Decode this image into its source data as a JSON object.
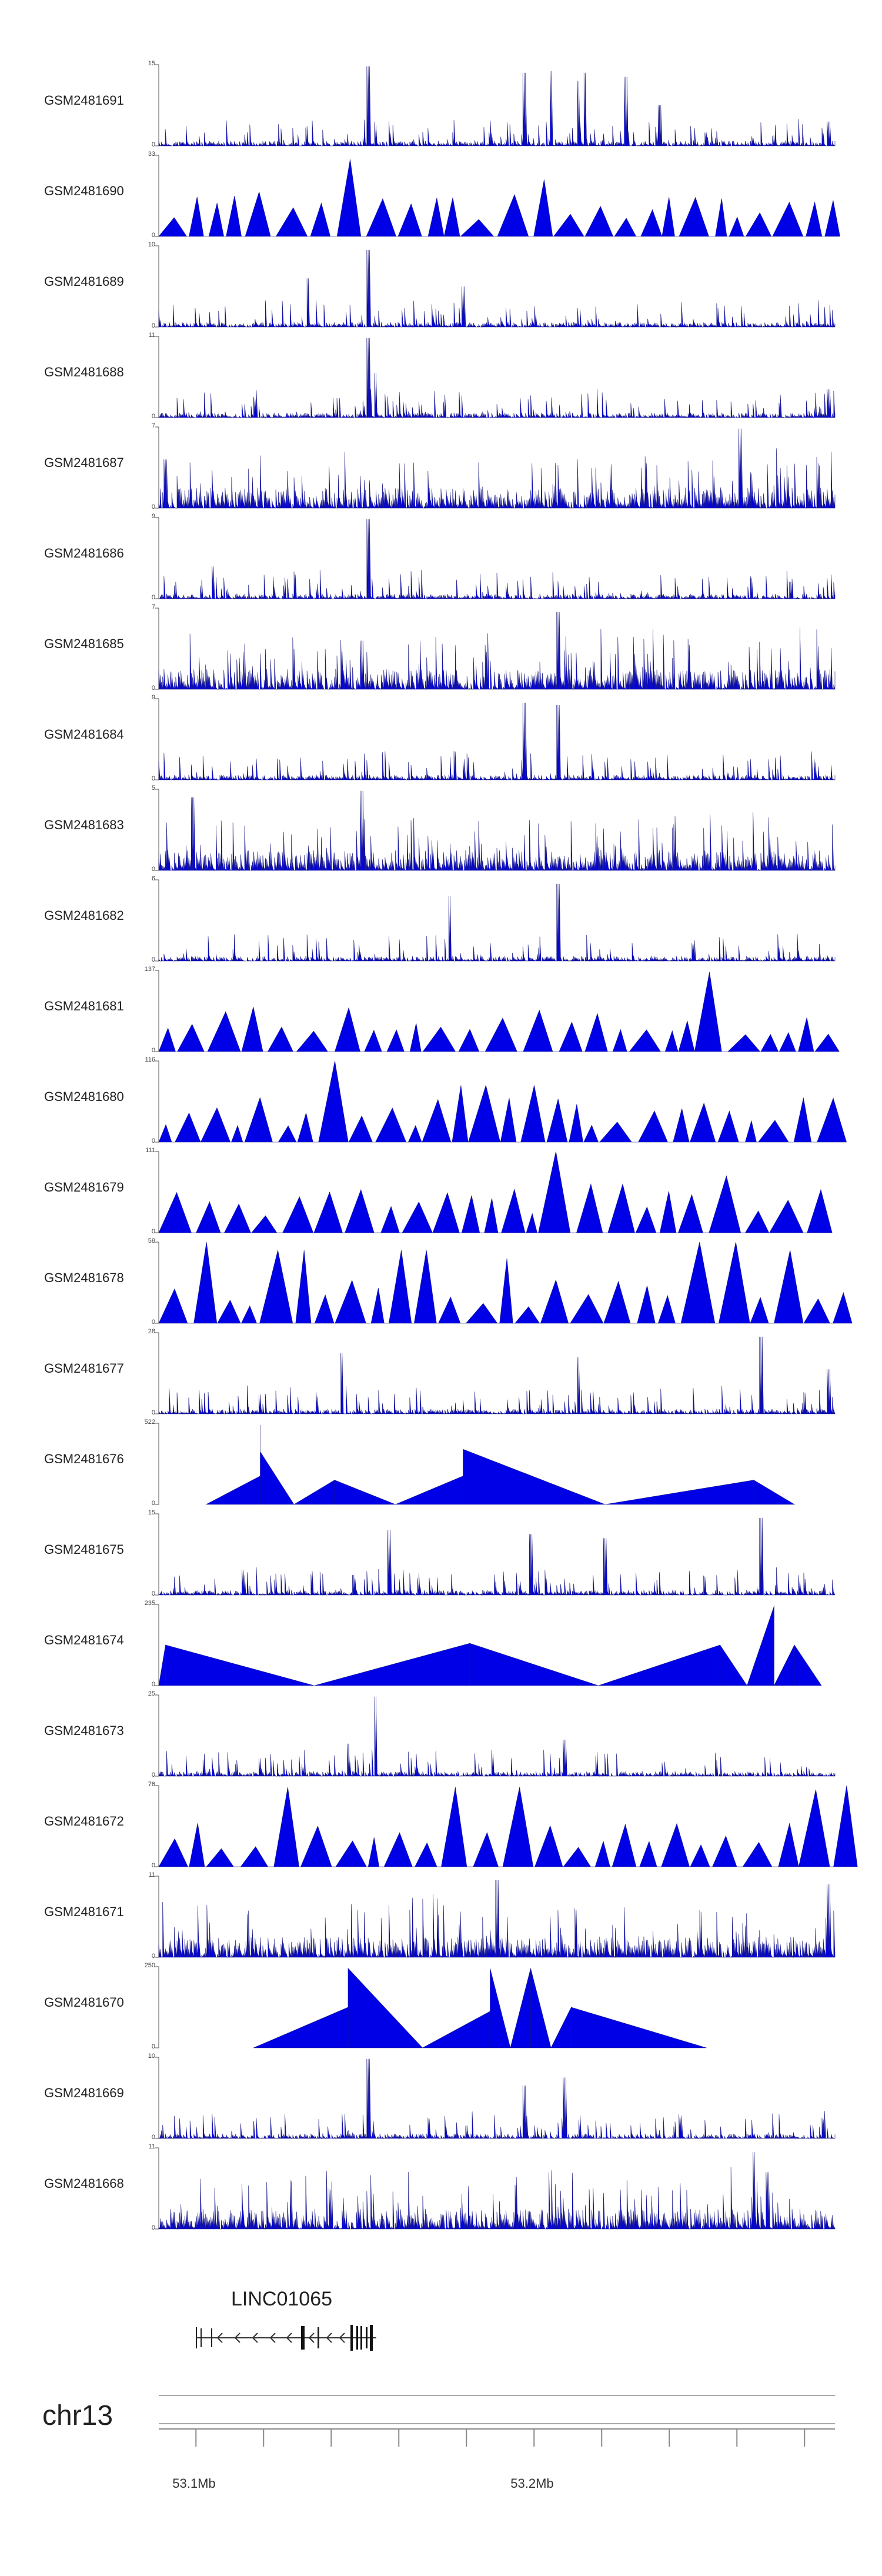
{
  "tracks": [
    {
      "id": "GSM2481691",
      "max": "15",
      "zero": "0",
      "style": "spiky",
      "seed": 11,
      "peaks": [
        [
          0.31,
          0.98
        ],
        [
          0.54,
          0.9
        ],
        [
          0.58,
          0.92
        ],
        [
          0.62,
          0.8
        ],
        [
          0.63,
          0.9
        ],
        [
          0.69,
          0.85
        ],
        [
          0.74,
          0.5
        ],
        [
          0.99,
          0.3
        ]
      ]
    },
    {
      "id": "GSM2481690",
      "max": "33",
      "zero": "0",
      "style": "tri",
      "seed": 12,
      "peaks": [
        [
          0.28,
          0.95
        ],
        [
          0.58,
          0.7
        ],
        [
          0.99,
          0.4
        ]
      ]
    },
    {
      "id": "GSM2481689",
      "max": "10",
      "zero": "0",
      "style": "spiky",
      "seed": 13,
      "peaks": [
        [
          0.31,
          0.95
        ],
        [
          0.22,
          0.6
        ],
        [
          0.45,
          0.5
        ]
      ]
    },
    {
      "id": "GSM2481688",
      "max": "11",
      "zero": "0",
      "style": "spiky",
      "seed": 14,
      "peaks": [
        [
          0.31,
          0.98
        ],
        [
          0.32,
          0.55
        ],
        [
          0.99,
          0.35
        ]
      ]
    },
    {
      "id": "GSM2481687",
      "max": "7",
      "zero": "0",
      "style": "dense",
      "seed": 15,
      "peaks": [
        [
          0.86,
          0.98
        ],
        [
          0.01,
          0.6
        ]
      ]
    },
    {
      "id": "GSM2481686",
      "max": "9",
      "zero": "0",
      "style": "spiky",
      "seed": 16,
      "peaks": [
        [
          0.31,
          0.98
        ],
        [
          0.08,
          0.4
        ]
      ]
    },
    {
      "id": "GSM2481685",
      "max": "7",
      "zero": "0",
      "style": "dense",
      "seed": 17,
      "peaks": [
        [
          0.59,
          0.95
        ],
        [
          0.3,
          0.6
        ]
      ]
    },
    {
      "id": "GSM2481684",
      "max": "9",
      "zero": "0",
      "style": "spiky",
      "seed": 18,
      "peaks": [
        [
          0.54,
          0.95
        ],
        [
          0.59,
          0.92
        ],
        [
          0.54,
          0.6
        ]
      ]
    },
    {
      "id": "GSM2481683",
      "max": "5",
      "zero": "0",
      "style": "dense",
      "seed": 19,
      "peaks": [
        [
          0.3,
          0.98
        ],
        [
          0.05,
          0.9
        ]
      ]
    },
    {
      "id": "GSM2481682",
      "max": "6",
      "zero": "0",
      "style": "spiky",
      "seed": 20,
      "peaks": [
        [
          0.59,
          0.95
        ],
        [
          0.43,
          0.8
        ]
      ]
    },
    {
      "id": "GSM2481681",
      "max": "137",
      "zero": "0",
      "style": "tri",
      "seed": 21,
      "peaks": [
        [
          0.81,
          0.98
        ]
      ]
    },
    {
      "id": "GSM2481680",
      "max": "116",
      "zero": "0",
      "style": "tri",
      "seed": 22,
      "peaks": [
        [
          0.25,
          1.0
        ],
        [
          0.47,
          0.7
        ],
        [
          0.55,
          0.7
        ]
      ]
    },
    {
      "id": "GSM2481679",
      "max": "111",
      "zero": "0",
      "style": "tri",
      "seed": 23,
      "peaks": [
        [
          0.59,
          1.0
        ],
        [
          0.66,
          0.6
        ],
        [
          0.84,
          0.7
        ]
      ]
    },
    {
      "id": "GSM2481678",
      "max": "58",
      "zero": "0",
      "style": "tri",
      "seed": 24,
      "peaks": [
        [
          0.06,
          1.0
        ],
        [
          0.82,
          1.0
        ],
        [
          0.86,
          1.0
        ],
        [
          0.19,
          0.9
        ],
        [
          0.38,
          0.9
        ],
        [
          0.51,
          0.8
        ],
        [
          0.92,
          0.9
        ]
      ]
    },
    {
      "id": "GSM2481677",
      "max": "28",
      "zero": "0",
      "style": "spiky",
      "seed": 25,
      "peaks": [
        [
          0.89,
          0.95
        ],
        [
          0.27,
          0.75
        ],
        [
          0.62,
          0.7
        ],
        [
          0.99,
          0.55
        ]
      ]
    },
    {
      "id": "GSM2481676",
      "max": "522",
      "zero": "0",
      "style": "blocks",
      "seed": 26,
      "blocks": [
        [
          0.07,
          0.15,
          0.0,
          0.35
        ],
        [
          0.15,
          0.15,
          0.35,
          0.98
        ],
        [
          0.15,
          0.2,
          0.65,
          0.0
        ],
        [
          0.2,
          0.26,
          0.0,
          0.3
        ],
        [
          0.26,
          0.35,
          0.3,
          0.0
        ],
        [
          0.35,
          0.45,
          0.0,
          0.35
        ],
        [
          0.45,
          0.45,
          0.35,
          0.68
        ],
        [
          0.45,
          0.66,
          0.68,
          0.0
        ],
        [
          0.66,
          0.88,
          0.0,
          0.3
        ],
        [
          0.88,
          0.94,
          0.3,
          0.0
        ]
      ]
    },
    {
      "id": "GSM2481675",
      "max": "15",
      "zero": "0",
      "style": "spiky",
      "seed": 27,
      "peaks": [
        [
          0.89,
          0.95
        ],
        [
          0.34,
          0.8
        ],
        [
          0.55,
          0.75
        ],
        [
          0.66,
          0.7
        ]
      ]
    },
    {
      "id": "GSM2481674",
      "max": "235",
      "zero": "0",
      "style": "blocks",
      "seed": 28,
      "blocks": [
        [
          0.0,
          0.01,
          0.0,
          0.5
        ],
        [
          0.01,
          0.23,
          0.5,
          0.0
        ],
        [
          0.23,
          0.46,
          0.0,
          0.52
        ],
        [
          0.46,
          0.65,
          0.52,
          0.0
        ],
        [
          0.65,
          0.83,
          0.0,
          0.5
        ],
        [
          0.83,
          0.87,
          0.5,
          0.0
        ],
        [
          0.87,
          0.91,
          0.0,
          0.98
        ],
        [
          0.91,
          0.94,
          0.0,
          0.5
        ],
        [
          0.94,
          0.98,
          0.5,
          0.0
        ]
      ]
    },
    {
      "id": "GSM2481673",
      "max": "25",
      "zero": "0",
      "style": "spiky",
      "seed": 29,
      "peaks": [
        [
          0.32,
          0.98
        ],
        [
          0.28,
          0.4
        ],
        [
          0.6,
          0.45
        ]
      ]
    },
    {
      "id": "GSM2481672",
      "max": "76",
      "zero": "0",
      "style": "tri",
      "seed": 30,
      "peaks": [
        [
          0.19,
          0.98
        ],
        [
          0.44,
          0.98
        ],
        [
          0.55,
          0.98
        ],
        [
          0.97,
          0.95
        ],
        [
          1.0,
          1.0
        ]
      ]
    },
    {
      "id": "GSM2481671",
      "max": "11",
      "zero": "0",
      "style": "dense",
      "seed": 31,
      "peaks": [
        [
          0.5,
          0.95
        ],
        [
          0.99,
          0.9
        ]
      ]
    },
    {
      "id": "GSM2481670",
      "max": "250",
      "zero": "0",
      "style": "blocks",
      "seed": 32,
      "blocks": [
        [
          0.14,
          0.28,
          0.0,
          0.5
        ],
        [
          0.28,
          0.28,
          0.5,
          0.98
        ],
        [
          0.28,
          0.39,
          0.98,
          0.0
        ],
        [
          0.39,
          0.49,
          0.0,
          0.45
        ],
        [
          0.49,
          0.49,
          0.45,
          0.98
        ],
        [
          0.49,
          0.52,
          0.98,
          0.0
        ],
        [
          0.52,
          0.55,
          0.0,
          0.98
        ],
        [
          0.55,
          0.58,
          0.98,
          0.0
        ],
        [
          0.58,
          0.61,
          0.0,
          0.5
        ],
        [
          0.61,
          0.81,
          0.5,
          0.0
        ]
      ]
    },
    {
      "id": "GSM2481669",
      "max": "10",
      "zero": "0",
      "style": "spiky",
      "seed": 33,
      "peaks": [
        [
          0.31,
          0.98
        ],
        [
          0.54,
          0.65
        ],
        [
          0.6,
          0.75
        ]
      ]
    },
    {
      "id": "GSM2481668",
      "max": "11",
      "zero": "0",
      "style": "dense",
      "seed": 34,
      "peaks": [
        [
          0.88,
          0.95
        ],
        [
          0.9,
          0.7
        ]
      ]
    }
  ],
  "gene": {
    "name": "LINC01065"
  },
  "chrom": {
    "name": "chr13"
  },
  "axis": {
    "labels": [
      {
        "text": "53.1Mb",
        "pos": 0.055
      },
      {
        "text": "53.2Mb",
        "pos": 0.555
      }
    ]
  },
  "colors": {
    "track": "#0000e6",
    "dark": "#1a1a80",
    "axis": "#888888"
  }
}
